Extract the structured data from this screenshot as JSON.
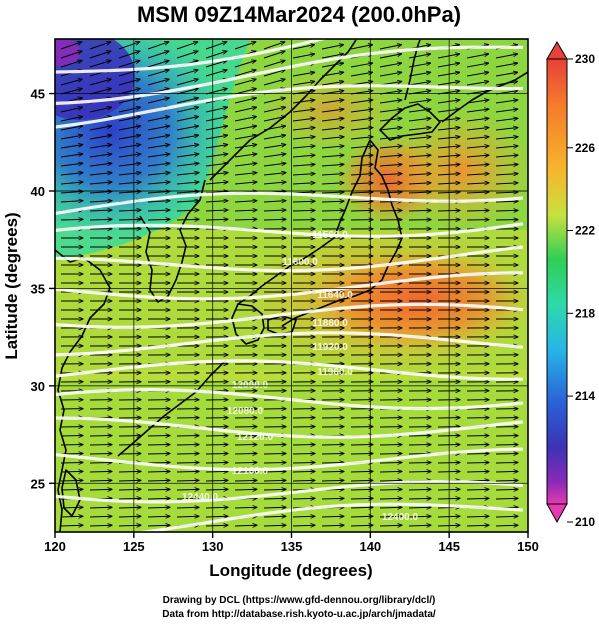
{
  "title": "MSM 09Z14Mar2024 (200.0hPa)",
  "x_axis": {
    "label": "Longitude (degrees)",
    "ticks": [
      "120",
      "125",
      "130",
      "135",
      "140",
      "145",
      "150"
    ]
  },
  "y_axis": {
    "label": "Latitude  (degrees)",
    "ticks": [
      "25",
      "30",
      "35",
      "40",
      "45"
    ]
  },
  "colorbar": {
    "labels": [
      "230",
      "226",
      "222",
      "218",
      "214",
      "210"
    ],
    "colors": [
      "#e8403a",
      "#f57a2a",
      "#f6b62c",
      "#c8e040",
      "#7fd93f",
      "#2fcf53",
      "#2ed9a8",
      "#27b7e6",
      "#2a63d8",
      "#3b33b5",
      "#8a2ab8",
      "#e43bb0"
    ]
  },
  "contour_labels": [
    "11560.0",
    "11600.0",
    "11640.0",
    "11880.0",
    "11920.0",
    "11960.0",
    "12000.0",
    "12080.0",
    "12120.0",
    "12160.0",
    "12400.0",
    "12440.0"
  ],
  "credits": {
    "line1": "Drawing by DCL (https://www.gfd-dennou.org/library/dcl/)",
    "line2": "Data from http://database.rish.kyoto-u.ac.jp/arch/jmadata/"
  }
}
